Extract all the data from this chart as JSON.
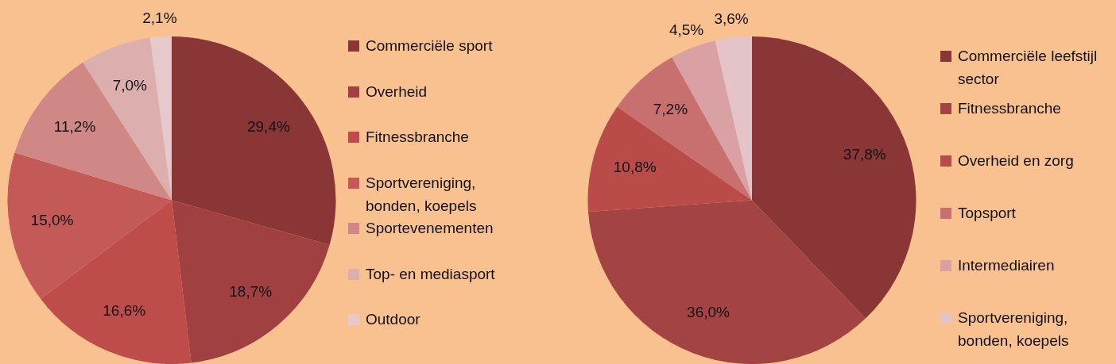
{
  "chart_data": [
    {
      "type": "pie",
      "categories": [
        "Commerciële sport",
        "Overheid",
        "Fitnessbranche",
        "Sportvereniging, bonden, koepels",
        "Sportevenementen",
        "Top- en mediasport",
        "Outdoor"
      ],
      "values": [
        29.4,
        18.7,
        16.6,
        15.0,
        11.2,
        7.0,
        2.1
      ],
      "value_labels": [
        "29,4%",
        "18,7%",
        "16,6%",
        "15,0%",
        "11,2%",
        "7,0%",
        "2,1%"
      ],
      "colors": [
        "#8b3636",
        "#a04040",
        "#bd4c4a",
        "#c45a58",
        "#cf8886",
        "#dcaeae",
        "#e6c9cb"
      ],
      "legend": "right"
    },
    {
      "type": "pie",
      "categories": [
        "Commerciële leefstijl sector",
        "Fitnessbranche",
        "Overheid en zorg",
        "Topsport",
        "Intermediairen",
        "Sportvereniging, bonden, koepels"
      ],
      "values": [
        37.8,
        36.0,
        10.8,
        7.2,
        4.5,
        3.6
      ],
      "value_labels": [
        "37,8%",
        "36,0%",
        "10,8%",
        "7,2%",
        "4,5%",
        "3,6%"
      ],
      "colors": [
        "#8b3636",
        "#a34343",
        "#b94b49",
        "#c8706f",
        "#d9a1a4",
        "#e4c4c8"
      ],
      "legend": "right"
    }
  ]
}
